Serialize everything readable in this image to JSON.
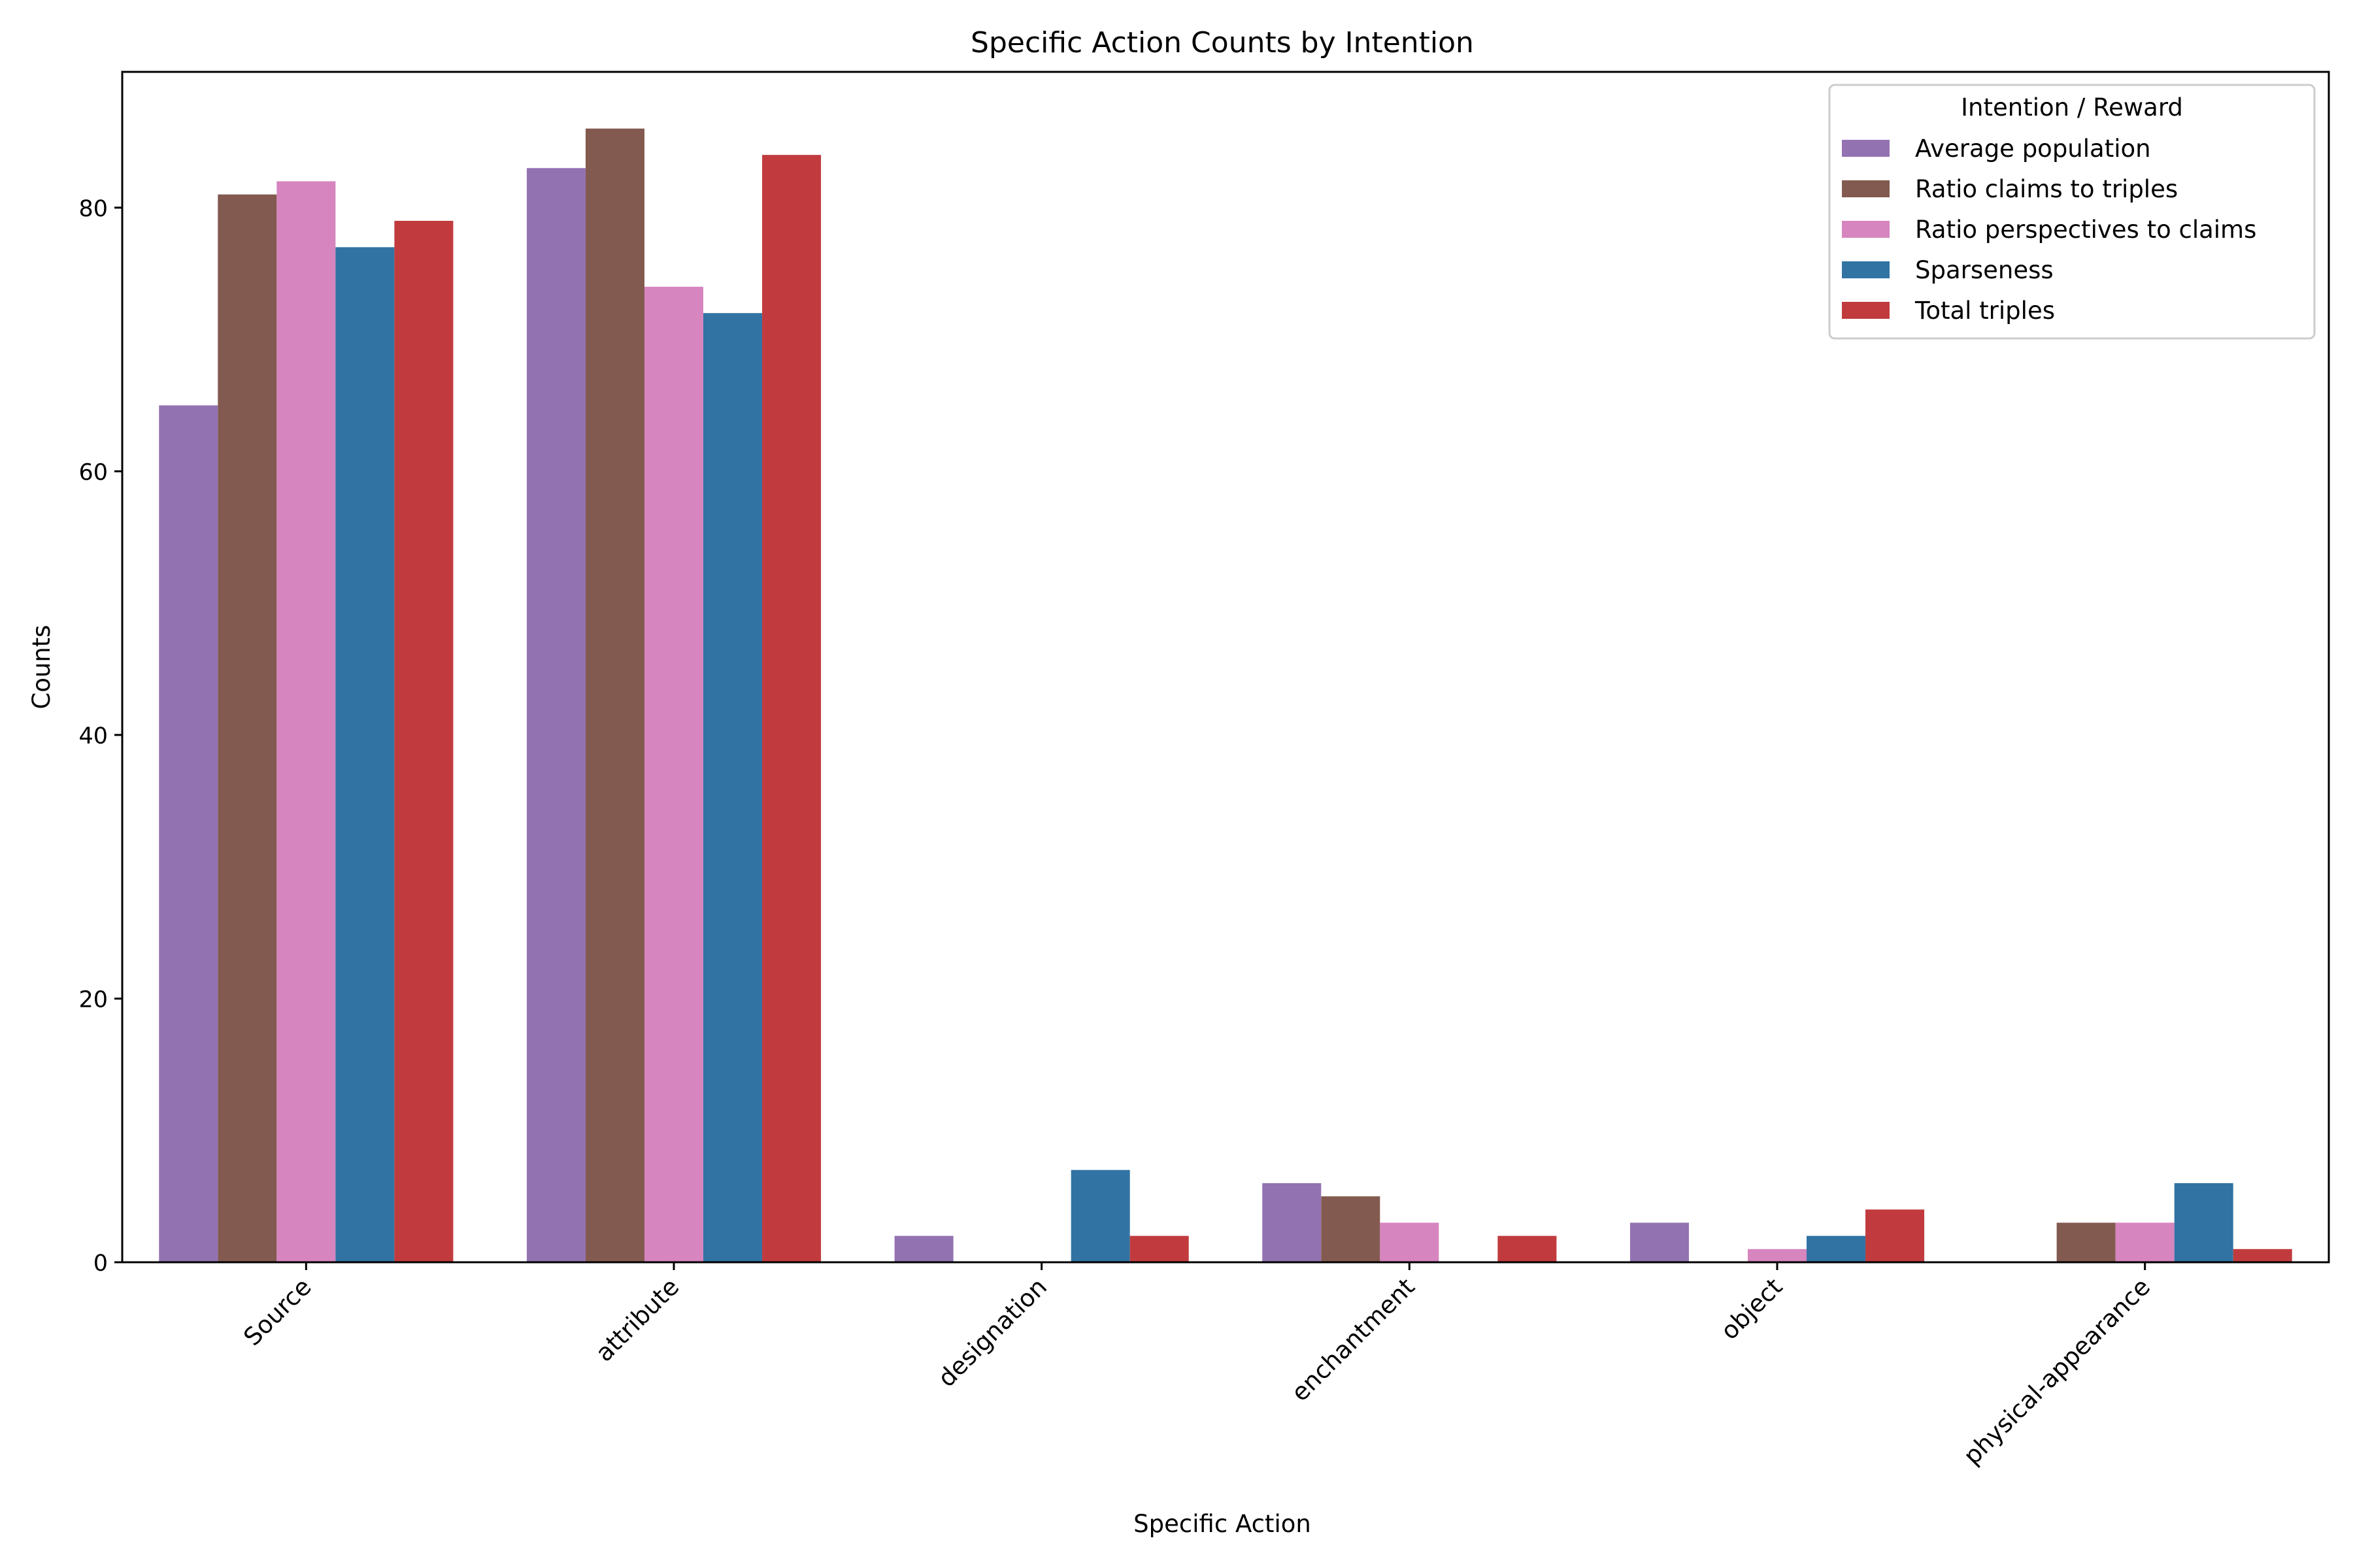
{
  "chart_data": {
    "type": "bar",
    "title": "Specific Action Counts by Intention",
    "xlabel": "Specific Action",
    "ylabel": "Counts",
    "categories": [
      "Source",
      "attribute",
      "designation",
      "enchantment",
      "object",
      "physical-appearance"
    ],
    "ylim": [
      0,
      90.3
    ],
    "yticks": [
      0,
      20,
      40,
      60,
      80
    ],
    "grid": false,
    "legend": {
      "title": "Intention / Reward",
      "position": "top-right"
    },
    "series": [
      {
        "name": "Average population",
        "color": "#9372b2",
        "values": [
          65,
          83,
          2,
          6,
          3,
          0
        ]
      },
      {
        "name": "Ratio claims to triples",
        "color": "#835a50",
        "values": [
          81,
          86,
          0,
          5,
          0,
          3
        ]
      },
      {
        "name": "Ratio perspectives to claims",
        "color": "#d685bf",
        "values": [
          82,
          74,
          0,
          3,
          1,
          3
        ]
      },
      {
        "name": "Sparseness",
        "color": "#3173a3",
        "values": [
          77,
          72,
          7,
          0,
          2,
          6
        ]
      },
      {
        "name": "Total triples",
        "color": "#c13b3e",
        "values": [
          79,
          84,
          2,
          2,
          4,
          1
        ]
      }
    ]
  }
}
